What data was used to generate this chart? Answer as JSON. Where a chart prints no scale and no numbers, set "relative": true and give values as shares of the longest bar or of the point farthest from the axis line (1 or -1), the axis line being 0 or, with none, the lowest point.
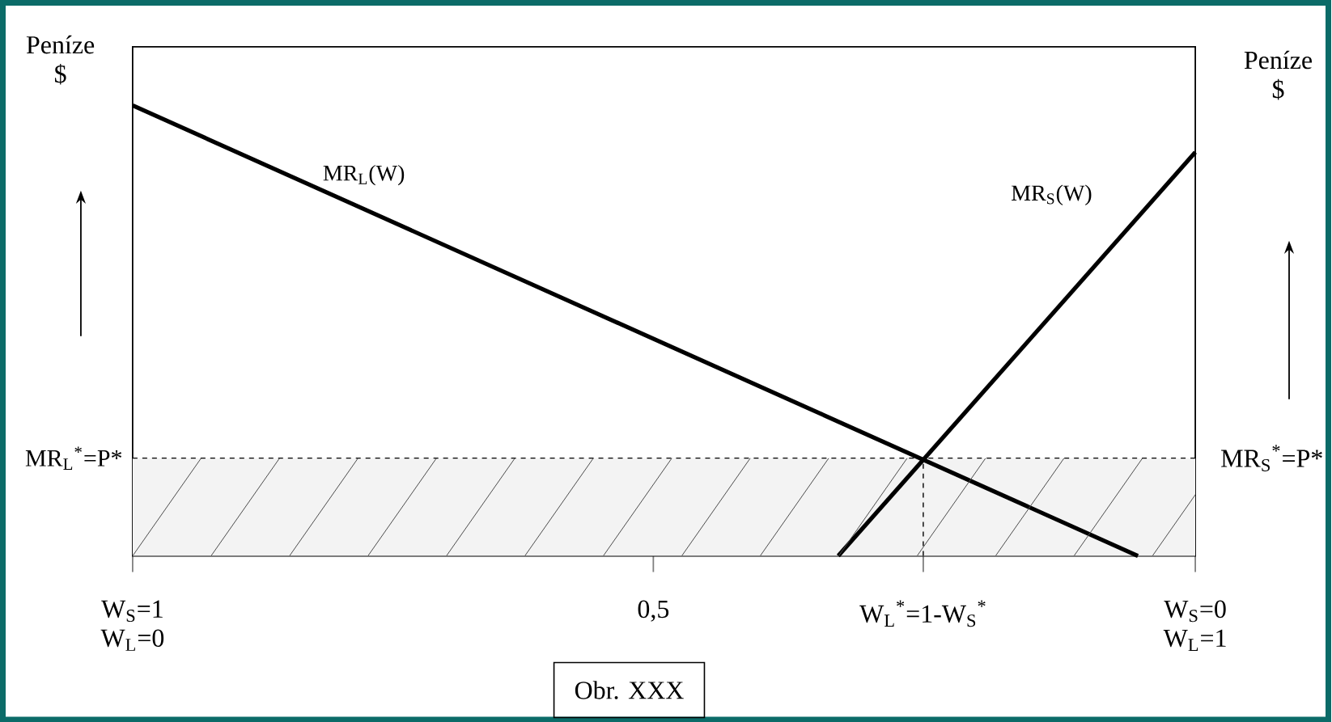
{
  "chart_data": {
    "type": "line",
    "relative": true,
    "ylabel": "Peníze $",
    "y2label": "Peníze $",
    "xlim": [
      0,
      1
    ],
    "xticks": [
      {
        "value": 0,
        "label": "W$_{S}$=1 W$_{L}$=0"
      },
      {
        "value": 0.49,
        "label": "0,5"
      },
      {
        "value": 0.744,
        "label": "W$_{L}$$^{*}$=1-W$_{S}$$^{*}$"
      },
      {
        "value": 1,
        "label": "W$_{S}$=0 W$_{L}$=1"
      }
    ],
    "series": [
      {
        "name": "MR$_{L}$(W)",
        "color": "#000000",
        "x": [
          0,
          0.946
        ],
        "values": [
          1,
          0
        ]
      },
      {
        "name": "MR$_{S}$(W)",
        "color": "#000000",
        "x": [
          0.664,
          1
        ],
        "values": [
          0,
          0.896
        ]
      }
    ],
    "ref_lines": [
      {
        "axis": "y",
        "value": 0.217,
        "label": "MR$_{L}$$^{*}$=P*",
        "line_style": "dashed",
        "color": "#000000"
      },
      {
        "axis": "x",
        "value": 0.744,
        "line_style": "dashed",
        "color": "#000000"
      }
    ],
    "bands": [
      {
        "axis": "y",
        "from": 0,
        "to": 0.217,
        "color": "#f3f3f3"
      }
    ],
    "annotations": [
      {
        "text": "MR$_{S}$$^{*}$=P*",
        "x": 1,
        "y": 0.217
      },
      "Obr. XXX"
    ],
    "marker": "none",
    "line_style": "solid"
  }
}
